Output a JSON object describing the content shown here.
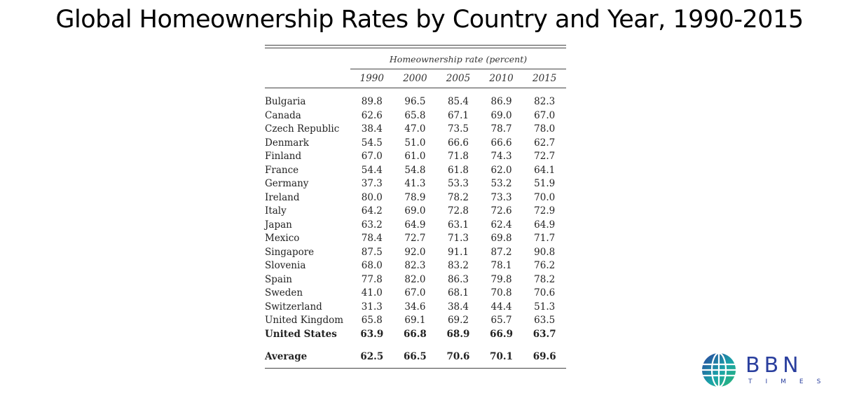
{
  "title": "Global Homeownership Rates by Country and Year, 1990-2015",
  "table": {
    "spanner": "Homeownership rate (percent)",
    "years": [
      "1990",
      "2000",
      "2005",
      "2010",
      "2015"
    ],
    "rows": [
      {
        "country": "Bulgaria",
        "values": [
          "89.8",
          "96.5",
          "85.4",
          "86.9",
          "82.3"
        ],
        "bold": false
      },
      {
        "country": "Canada",
        "values": [
          "62.6",
          "65.8",
          "67.1",
          "69.0",
          "67.0"
        ],
        "bold": false
      },
      {
        "country": "Czech Republic",
        "values": [
          "38.4",
          "47.0",
          "73.5",
          "78.7",
          "78.0"
        ],
        "bold": false
      },
      {
        "country": "Denmark",
        "values": [
          "54.5",
          "51.0",
          "66.6",
          "66.6",
          "62.7"
        ],
        "bold": false
      },
      {
        "country": "Finland",
        "values": [
          "67.0",
          "61.0",
          "71.8",
          "74.3",
          "72.7"
        ],
        "bold": false
      },
      {
        "country": "France",
        "values": [
          "54.4",
          "54.8",
          "61.8",
          "62.0",
          "64.1"
        ],
        "bold": false
      },
      {
        "country": "Germany",
        "values": [
          "37.3",
          "41.3",
          "53.3",
          "53.2",
          "51.9"
        ],
        "bold": false
      },
      {
        "country": "Ireland",
        "values": [
          "80.0",
          "78.9",
          "78.2",
          "73.3",
          "70.0"
        ],
        "bold": false
      },
      {
        "country": "Italy",
        "values": [
          "64.2",
          "69.0",
          "72.8",
          "72.6",
          "72.9"
        ],
        "bold": false
      },
      {
        "country": "Japan",
        "values": [
          "63.2",
          "64.9",
          "63.1",
          "62.4",
          "64.9"
        ],
        "bold": false
      },
      {
        "country": "Mexico",
        "values": [
          "78.4",
          "72.7",
          "71.3",
          "69.8",
          "71.7"
        ],
        "bold": false
      },
      {
        "country": "Singapore",
        "values": [
          "87.5",
          "92.0",
          "91.1",
          "87.2",
          "90.8"
        ],
        "bold": false
      },
      {
        "country": "Slovenia",
        "values": [
          "68.0",
          "82.3",
          "83.2",
          "78.1",
          "76.2"
        ],
        "bold": false
      },
      {
        "country": "Spain",
        "values": [
          "77.8",
          "82.0",
          "86.3",
          "79.8",
          "78.2"
        ],
        "bold": false
      },
      {
        "country": "Sweden",
        "values": [
          "41.0",
          "67.0",
          "68.1",
          "70.8",
          "70.6"
        ],
        "bold": false
      },
      {
        "country": "Switzerland",
        "values": [
          "31.3",
          "34.6",
          "38.4",
          "44.4",
          "51.3"
        ],
        "bold": false
      },
      {
        "country": "United Kingdom",
        "values": [
          "65.8",
          "69.1",
          "69.2",
          "65.7",
          "63.5"
        ],
        "bold": false
      },
      {
        "country": "United States",
        "values": [
          "63.9",
          "66.8",
          "68.9",
          "66.9",
          "63.7"
        ],
        "bold": true
      }
    ],
    "average": {
      "label": "Average",
      "values": [
        "62.5",
        "66.5",
        "70.6",
        "70.1",
        "69.6"
      ]
    }
  },
  "logo": {
    "word": "BBN",
    "sub": "TIMES",
    "colors": {
      "blue": "#2a3f9e",
      "teal": "#1aa3a8",
      "green": "#2bb673"
    }
  }
}
